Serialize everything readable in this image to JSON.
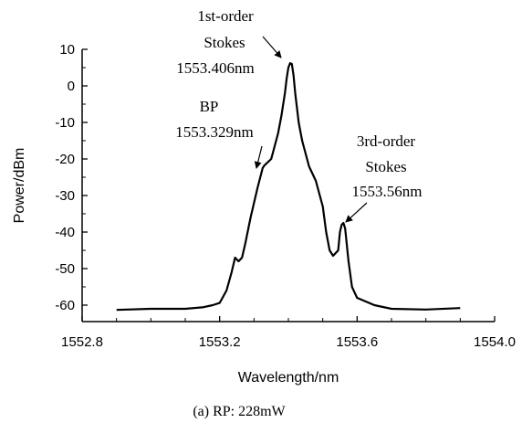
{
  "chart_data": {
    "type": "line",
    "title": "",
    "caption": "(a) RP: 228mW",
    "xlabel": "Wavelength/nm",
    "ylabel": "Power/dBm",
    "xlim": [
      1552.8,
      1554.0
    ],
    "ylim": [
      -60,
      10
    ],
    "x_ticks": [
      "1552.8",
      "1553.2",
      "1553.6",
      "1554.0"
    ],
    "x_tick_values": [
      1552.8,
      1553.2,
      1553.6,
      1554.0
    ],
    "y_ticks": [
      "10",
      "0",
      "-10",
      "-20",
      "-30",
      "-40",
      "-50",
      "-60"
    ],
    "y_tick_values": [
      10,
      0,
      -10,
      -20,
      -30,
      -40,
      -50,
      -60
    ],
    "grid": false,
    "series": [
      {
        "color": "#000000",
        "x": [
          1552.9,
          1553.0,
          1553.1,
          1553.15,
          1553.18,
          1553.2,
          1553.22,
          1553.235,
          1553.245,
          1553.255,
          1553.265,
          1553.275,
          1553.29,
          1553.31,
          1553.325,
          1553.33,
          1553.35,
          1553.37,
          1553.38,
          1553.39,
          1553.395,
          1553.4,
          1553.405,
          1553.41,
          1553.415,
          1553.42,
          1553.43,
          1553.44,
          1553.46,
          1553.48,
          1553.5,
          1553.51,
          1553.52,
          1553.53,
          1553.545,
          1553.55,
          1553.555,
          1553.56,
          1553.565,
          1553.575,
          1553.585,
          1553.6,
          1553.65,
          1553.7,
          1553.8,
          1553.9
        ],
        "values": [
          -61.3,
          -61.0,
          -61.0,
          -60.6,
          -60.0,
          -59.4,
          -56.0,
          -51.0,
          -47.0,
          -48.0,
          -47.0,
          -43.0,
          -36.0,
          -28.0,
          -22.5,
          -21.8,
          -20.0,
          -13.0,
          -8.0,
          -2.0,
          2.0,
          5.0,
          6.2,
          6.0,
          3.0,
          -2.0,
          -10.0,
          -15.0,
          -22.0,
          -26.0,
          -33.0,
          -40.0,
          -45.0,
          -46.5,
          -45.0,
          -40.0,
          -38.0,
          -37.5,
          -39.0,
          -48.0,
          -55.0,
          -58.0,
          -60.0,
          -61.0,
          -61.2,
          -60.8
        ]
      }
    ],
    "annotations": [
      {
        "lines": [
          "1st-order",
          "Stokes",
          "1553.406nm"
        ]
      },
      {
        "lines": [
          "BP",
          "1553.329nm"
        ]
      },
      {
        "lines": [
          "3rd-order",
          "Stokes",
          "1553.56nm"
        ]
      }
    ]
  }
}
